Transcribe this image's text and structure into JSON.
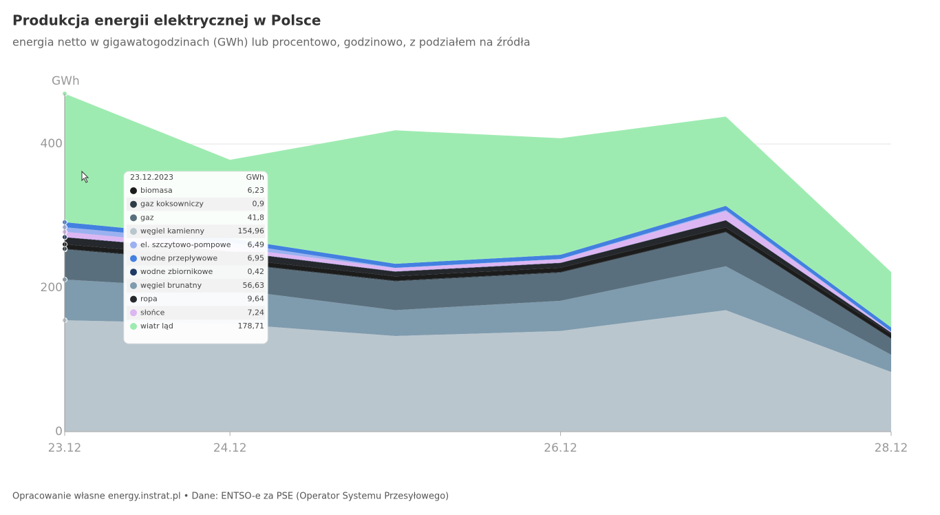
{
  "chart_data": {
    "type": "stacked_area",
    "title": "Produkcja energii elektrycznej w Polsce",
    "subtitle": "energia netto w gigawatogodzinach (GWh) lub procentowo, godzinowo, z podziałem na źródła",
    "y_label": "GWh",
    "source": "Opracowanie własne energy.instrat.pl • Dane: ENTSO-e za PSE (Operator Systemu Przesyłowego)",
    "categories": [
      "23.12",
      "24.12",
      null,
      "26.12",
      null,
      "28.12"
    ],
    "ylim": [
      0,
      470
    ],
    "yticks": [
      0,
      200,
      400
    ],
    "grid": true,
    "series": [
      {
        "name": "węgiel kamienny",
        "color": "#bac6cd",
        "values": [
          154.96,
          150,
          133,
          140,
          169,
          83
        ]
      },
      {
        "name": "węgiel brunatny",
        "color": "#7f9bae",
        "values": [
          56.63,
          48,
          36,
          42,
          61,
          24
        ]
      },
      {
        "name": "gaz",
        "color": "#5a6f7d",
        "values": [
          41.8,
          36,
          40,
          39,
          47,
          22
        ]
      },
      {
        "name": "gaz koksowniczy",
        "color": "#2d3b45",
        "values": [
          0.9,
          0.9,
          0.9,
          0.9,
          0.9,
          0.8
        ]
      },
      {
        "name": "biomasa",
        "color": "#1c1c1c",
        "values": [
          6.23,
          6.2,
          6.1,
          6.1,
          6.2,
          5.8
        ]
      },
      {
        "name": "ropa",
        "color": "#25282c",
        "values": [
          9.64,
          9.5,
          6.4,
          6.5,
          9.6,
          2.0
        ]
      },
      {
        "name": "wodne zbiornikowe",
        "color": "#1f3a66",
        "values": [
          0.42,
          0.4,
          0.4,
          0.4,
          0.4,
          0.4
        ]
      },
      {
        "name": "słońce",
        "color": "#dcb6f2",
        "values": [
          7.24,
          5.5,
          4.7,
          4.8,
          12.5,
          1.0
        ]
      },
      {
        "name": "el. szczytowo-pompowe",
        "color": "#9cb1ef",
        "values": [
          6.49,
          6.5,
          0.3,
          0.5,
          1.5,
          0.3
        ]
      },
      {
        "name": "wodne przepływowe",
        "color": "#4380e0",
        "values": [
          6.95,
          6.0,
          5.7,
          5.8,
          5.9,
          5.7
        ]
      },
      {
        "name": "wiatr ląd",
        "color": "#9eebb1",
        "values": [
          178.71,
          109,
          185.5,
          162,
          124,
          77
        ]
      }
    ],
    "tooltip": {
      "title": "23.12.2023",
      "unit": "GWh",
      "rows": [
        {
          "name": "biomasa",
          "label": "6,23"
        },
        {
          "name": "gaz koksowniczy",
          "label": "0,9"
        },
        {
          "name": "gaz",
          "label": "41,8"
        },
        {
          "name": "węgiel kamienny",
          "label": "154,96"
        },
        {
          "name": "el. szczytowo-pompowe",
          "label": "6,49"
        },
        {
          "name": "wodne przepływowe",
          "label": "6,95"
        },
        {
          "name": "wodne zbiornikowe",
          "label": "0,42"
        },
        {
          "name": "węgiel brunatny",
          "label": "56,63"
        },
        {
          "name": "ropa",
          "label": "9,64"
        },
        {
          "name": "słońce",
          "label": "7,24"
        },
        {
          "name": "wiatr ląd",
          "label": "178,71"
        }
      ]
    }
  }
}
